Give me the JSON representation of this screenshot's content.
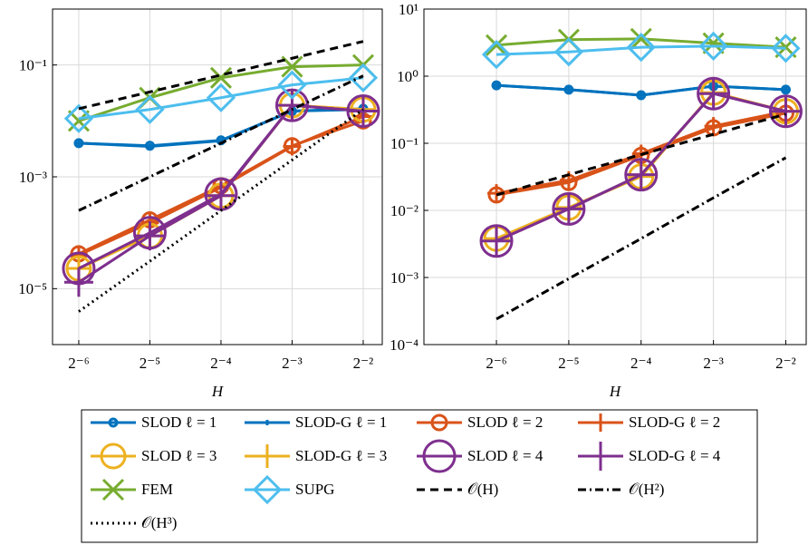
{
  "chart_data": [
    {
      "type": "line",
      "xlabel": "H",
      "xscale": "log",
      "yscale": "log",
      "grid": true,
      "xlim": [
        0.0121,
        0.301
      ],
      "xticks": [
        {
          "value": 0.015625,
          "label": "2⁻⁶"
        },
        {
          "value": 0.03125,
          "label": "2⁻⁵"
        },
        {
          "value": 0.0625,
          "label": "2⁻⁴"
        },
        {
          "value": 0.125,
          "label": "2⁻³"
        },
        {
          "value": 0.25,
          "label": "2⁻²"
        }
      ],
      "ylim": [
        1e-06,
        1
      ],
      "yticks": [
        {
          "value": 0.1,
          "label": "10⁻¹"
        },
        {
          "value": 0.001,
          "label": "10⁻³"
        },
        {
          "value": 1e-05,
          "label": "10⁻⁵"
        }
      ],
      "x": [
        0.015625,
        0.03125,
        0.0625,
        0.125,
        0.25
      ],
      "series": [
        {
          "name": "SLOD ℓ = 1",
          "color": "#0072bd",
          "marker": "circle",
          "marker_size": 4,
          "dash": "solid",
          "values": [
            0.004,
            0.0036,
            0.0045,
            0.015,
            0.0165
          ]
        },
        {
          "name": "SLOD-G ℓ = 1",
          "color": "#0072bd",
          "marker": "plus",
          "marker_size": 3,
          "dash": "solid",
          "values": [
            0.004,
            0.0035,
            0.0044,
            0.015,
            0.016
          ]
        },
        {
          "name": "SLOD ℓ = 2",
          "color": "#d95319",
          "marker": "circle",
          "marker_size": 8,
          "dash": "solid",
          "values": [
            4.2e-05,
            0.00017,
            0.00069,
            0.0036,
            0.01
          ]
        },
        {
          "name": "SLOD-G ℓ = 2",
          "color": "#d95319",
          "marker": "plus",
          "marker_size": 10,
          "dash": "solid",
          "values": [
            4e-05,
            0.00015,
            0.00065,
            0.0035,
            0.012
          ]
        },
        {
          "name": "SLOD ℓ = 3",
          "color": "#edb120",
          "marker": "circle",
          "marker_size": 13,
          "dash": "solid",
          "values": [
            2.3e-05,
            8.8e-05,
            0.00046,
            0.019,
            0.016
          ]
        },
        {
          "name": "SLOD-G ℓ = 3",
          "color": "#edb120",
          "marker": "plus",
          "marker_size": 13,
          "dash": "solid",
          "values": [
            2.3e-05,
            8.8e-05,
            0.00046,
            0.019,
            0.016
          ]
        },
        {
          "name": "SLOD ℓ = 4",
          "color": "#7e2f8e",
          "marker": "circle",
          "marker_size": 17,
          "dash": "solid",
          "values": [
            2.3e-05,
            0.0001,
            0.00049,
            0.019,
            0.015
          ]
        },
        {
          "name": "SLOD-G ℓ = 4",
          "color": "#7e2f8e",
          "marker": "plus",
          "marker_size": 16,
          "dash": "solid",
          "values": [
            1.3e-05,
            8.8e-05,
            0.00046,
            0.019,
            0.015
          ]
        },
        {
          "name": "FEM",
          "color": "#77ac30",
          "marker": "x",
          "marker_size": 11,
          "dash": "solid",
          "values": [
            0.01,
            0.026,
            0.059,
            0.093,
            0.1
          ]
        },
        {
          "name": "SUPG",
          "color": "#4dbeee",
          "marker": "diamond",
          "marker_size": 14,
          "dash": "solid",
          "values": [
            0.011,
            0.016,
            0.026,
            0.044,
            0.059
          ]
        },
        {
          "name": "𝒪(H)",
          "color": "#000000",
          "marker": "none",
          "dash": "dashed",
          "values": [
            0.0165,
            0.033,
            0.066,
            0.132,
            0.264
          ]
        },
        {
          "name": "𝒪(H²)",
          "color": "#000000",
          "marker": "none",
          "dash": "dashdot",
          "values": [
            0.00025,
            0.001,
            0.004,
            0.016,
            0.064
          ]
        },
        {
          "name": "𝒪(H³)",
          "color": "#000000",
          "marker": "none",
          "dash": "dotted",
          "values": [
            3.9e-06,
            3.1e-05,
            0.00025,
            0.002,
            0.016
          ]
        }
      ]
    },
    {
      "type": "line",
      "xlabel": "H",
      "xscale": "log",
      "yscale": "log",
      "grid": true,
      "xlim": [
        0.0078,
        0.304
      ],
      "xticks": [
        {
          "value": 0.015625,
          "label": "2⁻⁶"
        },
        {
          "value": 0.03125,
          "label": "2⁻⁵"
        },
        {
          "value": 0.0625,
          "label": "2⁻⁴"
        },
        {
          "value": 0.125,
          "label": "2⁻³"
        },
        {
          "value": 0.25,
          "label": "2⁻²"
        }
      ],
      "ylim": [
        0.0001,
        10
      ],
      "yticks": [
        {
          "value": 10,
          "label": "10¹"
        },
        {
          "value": 1,
          "label": "10⁰"
        },
        {
          "value": 0.1,
          "label": "10⁻¹"
        },
        {
          "value": 0.01,
          "label": "10⁻²"
        },
        {
          "value": 0.001,
          "label": "10⁻³"
        },
        {
          "value": 0.0001,
          "label": "10⁻⁴"
        }
      ],
      "x": [
        0.015625,
        0.03125,
        0.0625,
        0.125,
        0.25
      ],
      "series": [
        {
          "name": "SLOD ℓ = 1",
          "color": "#0072bd",
          "marker": "circle",
          "marker_size": 4,
          "dash": "solid",
          "values": [
            0.73,
            0.63,
            0.52,
            0.71,
            0.63
          ]
        },
        {
          "name": "SLOD-G ℓ = 1",
          "color": "#0072bd",
          "marker": "plus",
          "marker_size": 3,
          "dash": "solid",
          "values": [
            0.73,
            0.63,
            0.52,
            0.71,
            0.63
          ]
        },
        {
          "name": "SLOD ℓ = 2",
          "color": "#d95319",
          "marker": "circle",
          "marker_size": 8,
          "dash": "solid",
          "values": [
            0.017,
            0.026,
            0.066,
            0.17,
            0.28
          ]
        },
        {
          "name": "SLOD-G ℓ = 2",
          "color": "#d95319",
          "marker": "plus",
          "marker_size": 10,
          "dash": "solid",
          "values": [
            0.018,
            0.028,
            0.07,
            0.18,
            0.3
          ]
        },
        {
          "name": "SLOD ℓ = 3",
          "color": "#edb120",
          "marker": "circle",
          "marker_size": 13,
          "dash": "solid",
          "values": [
            0.0038,
            0.011,
            0.032,
            0.57,
            0.3
          ]
        },
        {
          "name": "SLOD-G ℓ = 3",
          "color": "#edb120",
          "marker": "plus",
          "marker_size": 13,
          "dash": "solid",
          "values": [
            0.0038,
            0.011,
            0.032,
            0.57,
            0.3
          ]
        },
        {
          "name": "SLOD ℓ = 4",
          "color": "#7e2f8e",
          "marker": "circle",
          "marker_size": 17,
          "dash": "solid",
          "values": [
            0.0035,
            0.0105,
            0.034,
            0.55,
            0.3
          ]
        },
        {
          "name": "SLOD-G ℓ = 4",
          "color": "#7e2f8e",
          "marker": "plus",
          "marker_size": 16,
          "dash": "solid",
          "values": [
            0.0035,
            0.0105,
            0.034,
            0.55,
            0.3
          ]
        },
        {
          "name": "FEM",
          "color": "#77ac30",
          "marker": "x",
          "marker_size": 11,
          "dash": "solid",
          "values": [
            2.9,
            3.5,
            3.6,
            3.1,
            2.7
          ]
        },
        {
          "name": "SUPG",
          "color": "#4dbeee",
          "marker": "diamond",
          "marker_size": 14,
          "dash": "solid",
          "values": [
            2.1,
            2.3,
            2.7,
            2.8,
            2.6
          ]
        },
        {
          "name": "𝒪(H)",
          "color": "#000000",
          "marker": "none",
          "dash": "dashed",
          "values": [
            0.017,
            0.034,
            0.068,
            0.136,
            0.272
          ]
        },
        {
          "name": "𝒪(H²)",
          "color": "#000000",
          "marker": "none",
          "dash": "dashdot",
          "values": [
            0.00024,
            0.00096,
            0.0038,
            0.0154,
            0.061
          ]
        }
      ]
    }
  ]
}
